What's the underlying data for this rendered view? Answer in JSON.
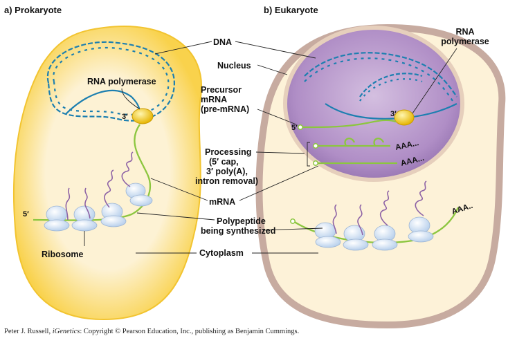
{
  "panels": {
    "prokaryote_title": "a) Prokaryote",
    "eukaryote_title": "b) Eukaryote"
  },
  "labels": {
    "dna": "DNA",
    "nucleus": "Nucleus",
    "rna_polymerase_prok": "RNA polymerase",
    "rna_polymerase_euk_line1": "RNA",
    "rna_polymerase_euk_line2": "polymerase",
    "precursor_line1": "Precursor",
    "precursor_line2": "mRNA",
    "precursor_line3": "(pre-mRNA)",
    "processing_line1": "Processing",
    "processing_line2": "(5′ cap,",
    "processing_line3": "3′ poly(A),",
    "processing_line4": "intron removal)",
    "mrna": "mRNA",
    "polypeptide_line1": "Polypeptide",
    "polypeptide_line2": "being synthesized",
    "ribosome": "Ribosome",
    "cytoplasm": "Cytoplasm"
  },
  "end_marks": {
    "three_prime": "3′",
    "five_prime": "5′",
    "polyA": "AAA...",
    "polyA_short": "AAA.."
  },
  "colors": {
    "cell_fill_prok": "#f9d24c",
    "cell_inner_prok": "#fdf2d4",
    "cell_membrane_euk": "#c7aba0",
    "cell_inner_euk": "#fdf2d8",
    "nucleus_fill": "#b08ec6",
    "dna": "#1c7fb0",
    "mrna": "#8cc63f",
    "polypeptide": "#8e63a6",
    "ribosome": "#cfe0f2",
    "polymerase": "#f2c81e"
  },
  "credit": {
    "author": "Peter J. Russell, ",
    "book": "iGenetics",
    "rest": ": Copyright © Pearson Education, Inc., publishing as Benjamin Cummings."
  }
}
